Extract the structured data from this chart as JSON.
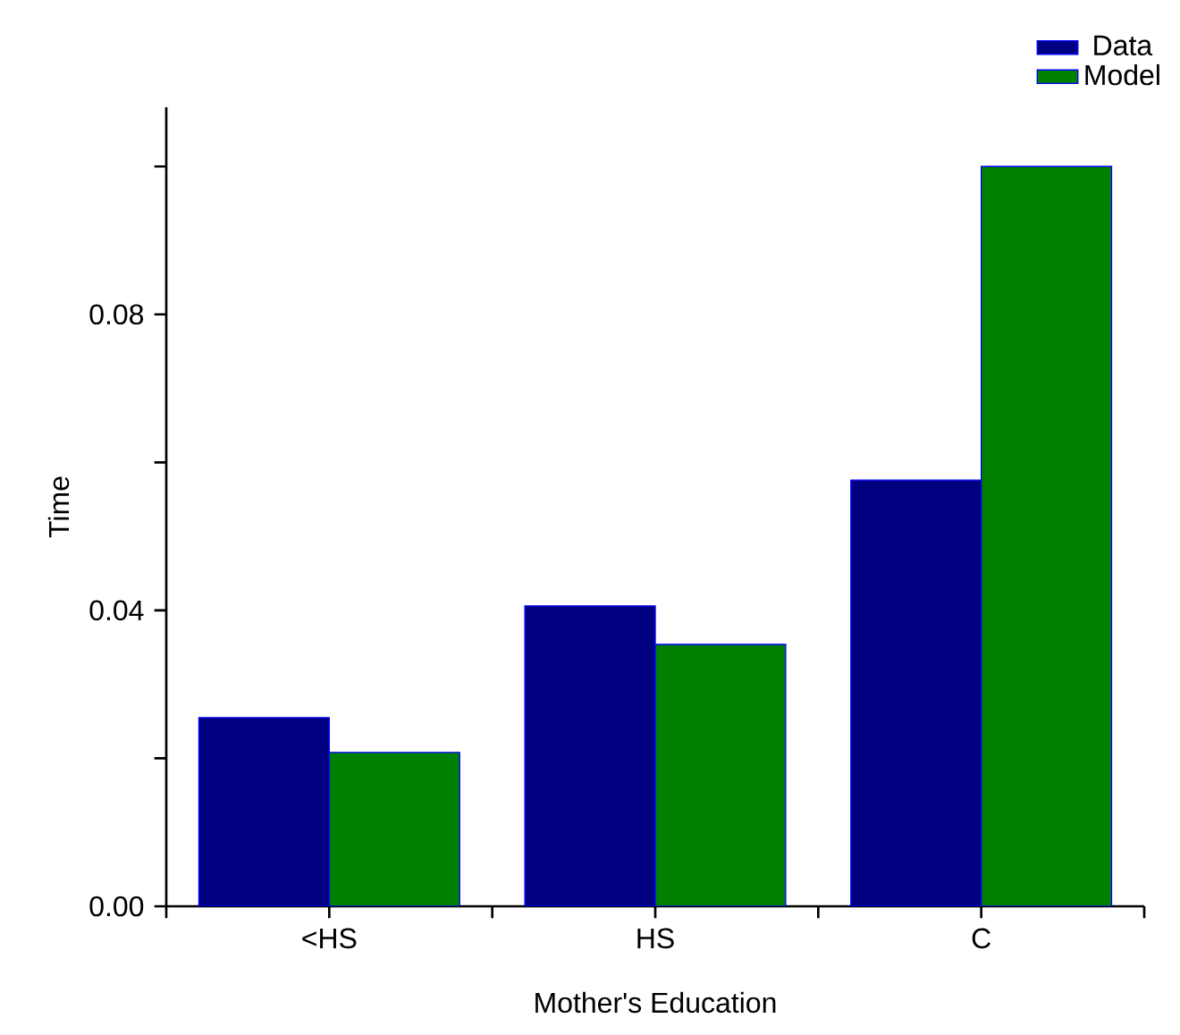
{
  "chart_data": {
    "type": "bar",
    "xlabel": "Mother's Education",
    "ylabel": "Time",
    "categories": [
      "<HS",
      "HS",
      "C"
    ],
    "series": [
      {
        "name": "Data",
        "color": "#000080",
        "values": [
          0.0255,
          0.0406,
          0.0576
        ]
      },
      {
        "name": "Model",
        "color": "#007f00",
        "values": [
          0.0208,
          0.0354,
          0.1
        ]
      }
    ],
    "ylim": [
      0,
      0.108
    ],
    "yticks": [
      {
        "value": 0,
        "label": "0.00"
      },
      {
        "value": 0.02,
        "label": null
      },
      {
        "value": 0.04,
        "label": "0.04"
      },
      {
        "value": 0.06,
        "label": null
      },
      {
        "value": 0.08,
        "label": "0.08"
      },
      {
        "value": 0.1,
        "label": null
      }
    ],
    "legend": "top right",
    "grid": false
  }
}
